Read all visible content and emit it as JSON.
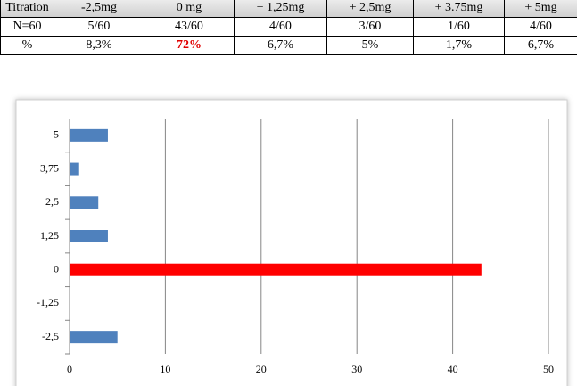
{
  "table": {
    "rows": [
      [
        "Titration",
        "-2,5mg",
        "0 mg",
        "+ 1,25mg",
        "+ 2,5mg",
        "+ 3.75mg",
        "+ 5mg"
      ],
      [
        "N=60",
        "5/60",
        "43/60",
        "4/60",
        "3/60",
        "1/60",
        "4/60"
      ],
      [
        "%",
        "8,3%",
        "72%",
        "6,7%",
        "5%",
        "1,7%",
        "6,7%"
      ]
    ]
  },
  "chart_data": {
    "type": "barh",
    "categories": [
      "-2,5",
      "-1,25",
      "0",
      "1,25",
      "2,5",
      "3,75",
      "5"
    ],
    "values": [
      5,
      0,
      43,
      4,
      3,
      1,
      4
    ],
    "colors": [
      "#4f81bd",
      "#4f81bd",
      "#ff0000",
      "#4f81bd",
      "#4f81bd",
      "#4f81bd",
      "#4f81bd"
    ],
    "xlim": [
      0,
      50
    ],
    "xticks": [
      0,
      10,
      20,
      30,
      40,
      50
    ],
    "grid": true
  }
}
